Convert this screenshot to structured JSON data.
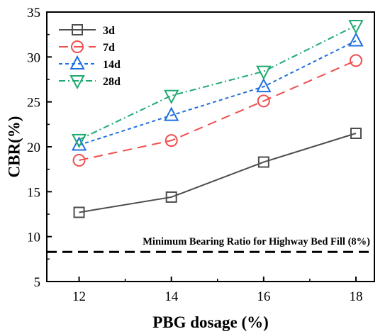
{
  "chart_data": {
    "type": "line",
    "xlabel": "PBG dosage (%)",
    "ylabel": "CBR(%)",
    "xlim": [
      11.3,
      18.4
    ],
    "ylim": [
      5,
      35
    ],
    "xticks": [
      12,
      14,
      16,
      18
    ],
    "yticks": [
      5,
      10,
      15,
      20,
      25,
      30,
      35
    ],
    "x": [
      12,
      14,
      16,
      18
    ],
    "series": [
      {
        "name": "3d",
        "values": [
          12.7,
          14.4,
          18.3,
          21.5
        ],
        "color": "#4d4d4d",
        "marker": "square",
        "dash": "solid"
      },
      {
        "name": "7d",
        "values": [
          18.5,
          20.7,
          25.1,
          29.6
        ],
        "color": "#f04e4e",
        "marker": "circle",
        "dash": "long-dash"
      },
      {
        "name": "14d",
        "values": [
          20.2,
          23.5,
          26.7,
          31.8
        ],
        "color": "#1f6fe0",
        "marker": "triangle-up",
        "dash": "short-dash"
      },
      {
        "name": "28d",
        "values": [
          20.8,
          25.7,
          28.4,
          33.5
        ],
        "color": "#1faa70",
        "marker": "triangle-down",
        "dash": "dash-dot"
      }
    ],
    "reference_line": {
      "y": 8.3,
      "label": "Minimum Bearing Ratio for Highway Bed Fill (8%)",
      "color": "#000000",
      "dash": "dashed"
    },
    "legend": {
      "position": "top-left"
    },
    "grid": false
  }
}
